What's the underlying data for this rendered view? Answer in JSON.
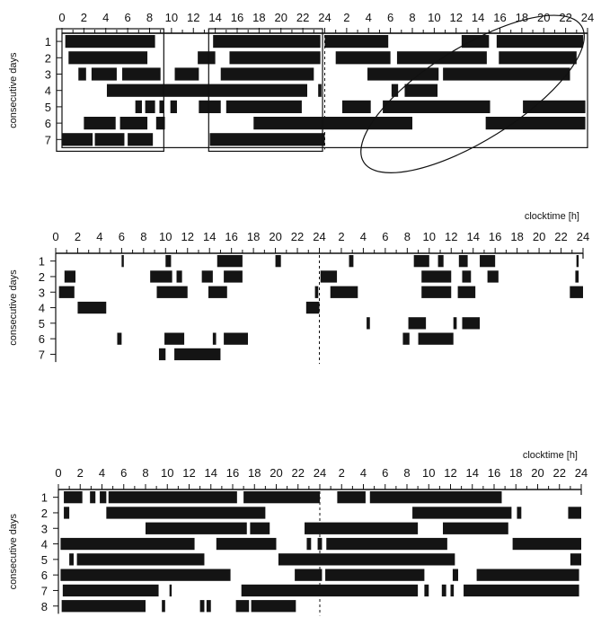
{
  "chart_data": [
    {
      "type": "raster",
      "xlabel": "",
      "ylabel": "consecutive days",
      "x_ticks": [
        "0",
        "2",
        "4",
        "6",
        "8",
        "10",
        "12",
        "14",
        "16",
        "18",
        "20",
        "22",
        "24",
        "2",
        "4",
        "6",
        "8",
        "10",
        "12",
        "14",
        "16",
        "18",
        "20",
        "22",
        "24"
      ],
      "xlim_hours": [
        0,
        48
      ],
      "days": [
        "1",
        "2",
        "3",
        "4",
        "5",
        "6",
        "7"
      ],
      "rows": [
        {
          "day": "1",
          "activity": [
            [
              0.3,
              8.5
            ],
            [
              13.8,
              23.6
            ],
            [
              24.0,
              29.8
            ],
            [
              36.5,
              39.0
            ],
            [
              39.7,
              47.6
            ]
          ]
        },
        {
          "day": "2",
          "activity": [
            [
              0.6,
              7.8
            ],
            [
              12.4,
              14.0
            ],
            [
              15.3,
              23.6
            ],
            [
              25.0,
              30.0
            ],
            [
              30.6,
              38.8
            ],
            [
              39.9,
              47.0
            ]
          ]
        },
        {
          "day": "3",
          "activity": [
            [
              1.5,
              2.2
            ],
            [
              2.7,
              5.0
            ],
            [
              5.5,
              9.0
            ],
            [
              10.3,
              12.5
            ],
            [
              14.5,
              23.0
            ],
            [
              27.9,
              34.4
            ],
            [
              34.8,
              46.4
            ]
          ]
        },
        {
          "day": "4",
          "activity": [
            [
              4.1,
              22.4
            ],
            [
              23.4,
              23.7
            ],
            [
              30.1,
              30.7
            ],
            [
              31.3,
              34.3
            ]
          ]
        },
        {
          "day": "5",
          "activity": [
            [
              6.7,
              7.3
            ],
            [
              7.6,
              8.5
            ],
            [
              8.9,
              9.3
            ],
            [
              9.9,
              10.5
            ],
            [
              12.5,
              14.5
            ],
            [
              15.0,
              21.9
            ],
            [
              25.6,
              28.2
            ],
            [
              29.3,
              39.1
            ],
            [
              42.1,
              47.8
            ]
          ]
        },
        {
          "day": "6",
          "activity": [
            [
              2.0,
              4.9
            ],
            [
              5.3,
              7.8
            ],
            [
              8.6,
              9.4
            ],
            [
              17.5,
              32.0
            ],
            [
              38.7,
              47.8
            ]
          ]
        },
        {
          "day": "7",
          "activity": [
            [
              0.0,
              2.8
            ],
            [
              3.0,
              5.7
            ],
            [
              6.0,
              8.3
            ],
            [
              13.5,
              24.0
            ]
          ]
        }
      ],
      "annotations": [
        "rectangle_days_1_7_hours_0_9",
        "rectangle_days_1_7_hours_14_24",
        "ellipse_days_1_7_hours_24_45"
      ]
    },
    {
      "type": "raster",
      "xlabel": "clocktime [h]",
      "ylabel": "consecutive days",
      "x_ticks": [
        "0",
        "2",
        "4",
        "6",
        "8",
        "10",
        "12",
        "14",
        "16",
        "18",
        "20",
        "22",
        "24",
        "2",
        "4",
        "6",
        "8",
        "10",
        "12",
        "14",
        "16",
        "18",
        "20",
        "22",
        "24"
      ],
      "xlim_hours": [
        0,
        48
      ],
      "days": [
        "1",
        "2",
        "3",
        "4",
        "5",
        "6",
        "7"
      ],
      "rows": [
        {
          "day": "1",
          "activity": [
            [
              6.0,
              6.2
            ],
            [
              10.0,
              10.5
            ],
            [
              14.7,
              17.0
            ],
            [
              20.0,
              20.5
            ],
            [
              26.7,
              27.1
            ],
            [
              32.6,
              34.0
            ],
            [
              34.8,
              35.3
            ],
            [
              36.7,
              37.5
            ],
            [
              38.6,
              40.0
            ],
            [
              47.4,
              47.6
            ]
          ]
        },
        {
          "day": "2",
          "activity": [
            [
              0.8,
              1.8
            ],
            [
              8.6,
              10.6
            ],
            [
              11.0,
              11.5
            ],
            [
              13.3,
              14.3
            ],
            [
              15.3,
              17.0
            ],
            [
              24.1,
              25.6
            ],
            [
              33.3,
              36.0
            ],
            [
              37.0,
              37.8
            ],
            [
              39.3,
              40.3
            ],
            [
              47.3,
              47.6
            ]
          ]
        },
        {
          "day": "3",
          "activity": [
            [
              0.3,
              1.7
            ],
            [
              9.2,
              12.0
            ],
            [
              13.9,
              15.6
            ],
            [
              23.6,
              23.9
            ],
            [
              25.0,
              27.5
            ],
            [
              33.3,
              36.0
            ],
            [
              36.6,
              38.2
            ],
            [
              46.8,
              48.0
            ]
          ]
        },
        {
          "day": "4",
          "activity": [
            [
              2.0,
              4.6
            ],
            [
              22.8,
              24.0
            ]
          ]
        },
        {
          "day": "5",
          "activity": [
            [
              28.3,
              28.6
            ],
            [
              32.1,
              33.7
            ],
            [
              36.2,
              36.5
            ],
            [
              37.0,
              38.6
            ]
          ]
        },
        {
          "day": "6",
          "activity": [
            [
              5.6,
              6.0
            ],
            [
              9.9,
              11.7
            ],
            [
              14.3,
              14.6
            ],
            [
              15.3,
              17.5
            ],
            [
              31.6,
              32.2
            ],
            [
              33.0,
              36.2
            ]
          ]
        },
        {
          "day": "7",
          "activity": [
            [
              9.4,
              10.0
            ],
            [
              10.8,
              15.0
            ]
          ]
        }
      ]
    },
    {
      "type": "raster",
      "xlabel": "clocktime [h]",
      "ylabel": "consecutive days",
      "x_ticks": [
        "0",
        "2",
        "4",
        "6",
        "8",
        "10",
        "12",
        "14",
        "16",
        "18",
        "20",
        "22",
        "24",
        "2",
        "4",
        "6",
        "8",
        "10",
        "12",
        "14",
        "16",
        "18",
        "20",
        "22",
        "24"
      ],
      "xlim_hours": [
        0,
        48
      ],
      "days": [
        "1",
        "2",
        "3",
        "4",
        "5",
        "6",
        "7",
        "8"
      ],
      "rows": [
        {
          "day": "1",
          "activity": [
            [
              0.5,
              2.2
            ],
            [
              2.9,
              3.4
            ],
            [
              3.8,
              4.4
            ],
            [
              4.6,
              16.4
            ],
            [
              17.0,
              24.0
            ],
            [
              25.6,
              28.2
            ],
            [
              28.6,
              40.7
            ]
          ]
        },
        {
          "day": "2",
          "activity": [
            [
              0.5,
              1.0
            ],
            [
              4.4,
              19.0
            ],
            [
              32.5,
              41.6
            ],
            [
              42.1,
              42.5
            ],
            [
              46.8,
              48.0
            ]
          ]
        },
        {
          "day": "3",
          "activity": [
            [
              8.0,
              17.3
            ],
            [
              17.6,
              19.4
            ],
            [
              22.6,
              33.0
            ],
            [
              35.3,
              41.3
            ]
          ]
        },
        {
          "day": "4",
          "activity": [
            [
              0.2,
              12.5
            ],
            [
              14.5,
              20.0
            ],
            [
              22.8,
              23.2
            ],
            [
              23.8,
              24.2
            ],
            [
              24.6,
              35.7
            ],
            [
              41.7,
              48.0
            ]
          ]
        },
        {
          "day": "5",
          "activity": [
            [
              1.0,
              1.4
            ],
            [
              1.7,
              13.4
            ],
            [
              20.2,
              36.4
            ],
            [
              47.0,
              48.0
            ]
          ]
        },
        {
          "day": "6",
          "activity": [
            [
              0.2,
              15.8
            ],
            [
              21.7,
              24.2
            ],
            [
              24.5,
              33.6
            ],
            [
              36.2,
              36.7
            ],
            [
              38.4,
              47.8
            ]
          ]
        },
        {
          "day": "7",
          "activity": [
            [
              0.4,
              9.2
            ],
            [
              10.2,
              10.4
            ],
            [
              16.8,
              33.0
            ],
            [
              33.6,
              34.0
            ],
            [
              35.2,
              35.6
            ],
            [
              36.0,
              36.3
            ],
            [
              37.2,
              47.8
            ]
          ]
        },
        {
          "day": "8",
          "activity": [
            [
              0.3,
              8.0
            ],
            [
              9.5,
              9.8
            ],
            [
              13.0,
              13.4
            ],
            [
              13.6,
              14.0
            ],
            [
              16.3,
              17.5
            ],
            [
              17.7,
              21.8
            ]
          ]
        }
      ]
    }
  ]
}
